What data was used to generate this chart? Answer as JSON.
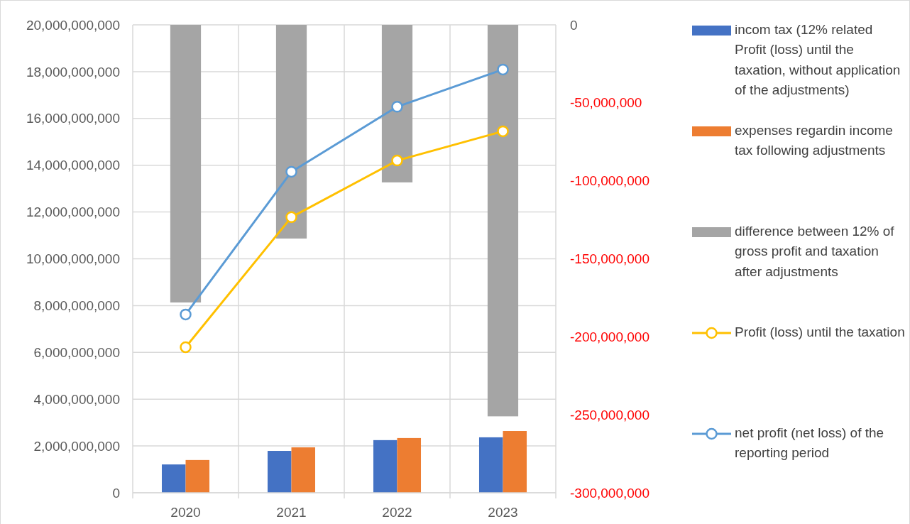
{
  "chart_data": {
    "type": "bar",
    "categories": [
      "2020",
      "2021",
      "2022",
      "2023"
    ],
    "series": [
      {
        "name": "incom tax (12% related Profit (loss) until the taxation, without application of the adjustments)",
        "color": "#4472c4",
        "values": [
          1210000000,
          1790000000,
          2250000000,
          2370000000
        ]
      },
      {
        "name": "expenses regardin income tax following adjustments",
        "color": "#ed7d31",
        "values": [
          1400000000,
          1940000000,
          2340000000,
          2640000000
        ]
      },
      {
        "name": "difference between 12% of gross profit and taxation after adjustments",
        "color": "#a5a5a5",
        "axis": "y2",
        "values": [
          -178000000,
          -137000000,
          -101000000,
          -251000000
        ]
      },
      {
        "name": "Profit (loss) until the taxation",
        "type": "line",
        "color": "#ffc000",
        "values": [
          6220000000,
          11780000000,
          14200000000,
          15450000000
        ]
      },
      {
        "name": "net profit  (net loss) of the reporting period",
        "type": "line",
        "color": "#5b9bd5",
        "values": [
          7620000000,
          13720000000,
          16500000000,
          18090000000
        ]
      }
    ],
    "ylim": [
      0,
      20000000000
    ],
    "yticks": [
      {
        "value": 0,
        "label": "0"
      },
      {
        "value": 2000000000,
        "label": "2,000,000,000"
      },
      {
        "value": 4000000000,
        "label": "4,000,000,000"
      },
      {
        "value": 6000000000,
        "label": "6,000,000,000"
      },
      {
        "value": 8000000000,
        "label": "8,000,000,000"
      },
      {
        "value": 10000000000,
        "label": "10,000,000,000"
      },
      {
        "value": 12000000000,
        "label": "12,000,000,000"
      },
      {
        "value": 14000000000,
        "label": "14,000,000,000"
      },
      {
        "value": 16000000000,
        "label": "16,000,000,000"
      },
      {
        "value": 18000000000,
        "label": "18,000,000,000"
      },
      {
        "value": 20000000000,
        "label": "20,000,000,000"
      }
    ],
    "y2lim": [
      -300000000,
      0
    ],
    "y2ticks": [
      {
        "value": 0,
        "label": "0"
      },
      {
        "value": -50000000,
        "label": "-50,000,000"
      },
      {
        "value": -100000000,
        "label": "-100,000,000"
      },
      {
        "value": -150000000,
        "label": "-150,000,000"
      },
      {
        "value": -200000000,
        "label": "-200,000,000"
      },
      {
        "value": -250000000,
        "label": "-250,000,000"
      },
      {
        "value": -300000000,
        "label": "-300,000,000"
      }
    ],
    "grid": true,
    "legend": "right",
    "marker": "circle"
  }
}
